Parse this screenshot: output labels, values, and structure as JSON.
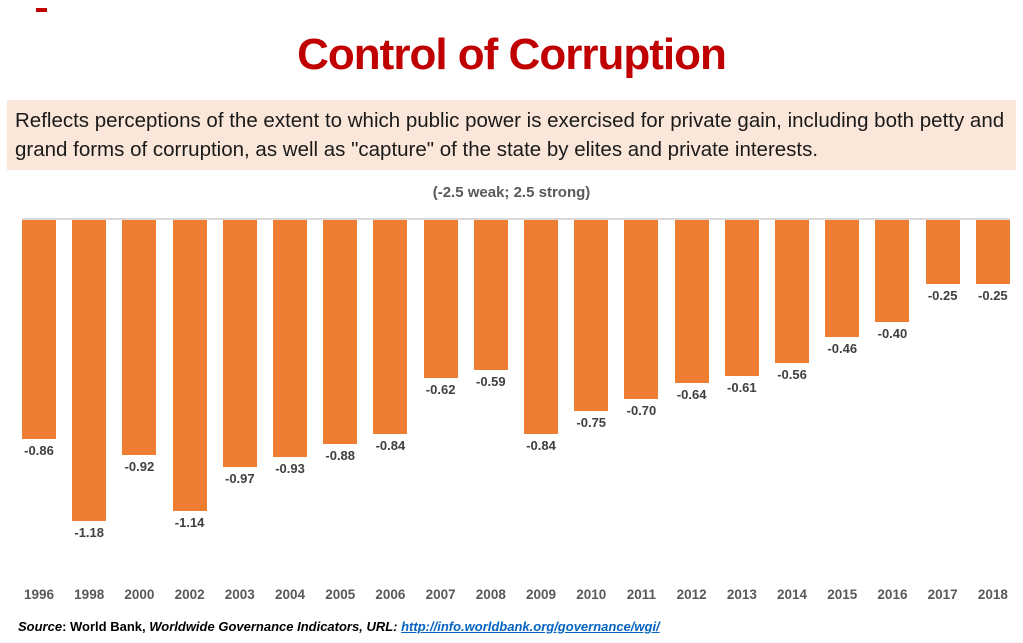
{
  "title": "Control of Corruption",
  "description": "Reflects perceptions of the extent to which public power is exercised for private gain, including both petty and grand forms of corruption, as well as \"capture\" of the state by elites and private interests.",
  "scale_note": "(-2.5 weak; 2.5 strong)",
  "source": {
    "prefix": "Source",
    "org": ": World Bank, ",
    "publication": "Worldwide Governance Indicators, ",
    "url_label": "URL: ",
    "url": "http://info.worldbank.org/governance/wgi/"
  },
  "colors": {
    "title": "#c00000",
    "bar": "#ed7d31",
    "value_label": "#404040",
    "year_label": "#595959",
    "description_bg": "#fbe7da",
    "link": "#0563c1"
  },
  "chart_data": {
    "type": "bar",
    "title": "Control of Corruption",
    "subtitle": "(-2.5 weak; 2.5 strong)",
    "xlabel": "",
    "ylabel": "",
    "ylim": [
      -1.25,
      0
    ],
    "grid": false,
    "legend": "none",
    "zero_axis_line": true,
    "value_labels_shown": true,
    "categories": [
      "1996",
      "1998",
      "2000",
      "2002",
      "2003",
      "2004",
      "2005",
      "2006",
      "2007",
      "2008",
      "2009",
      "2010",
      "2011",
      "2012",
      "2013",
      "2014",
      "2015",
      "2016",
      "2017",
      "2018"
    ],
    "values": [
      -0.86,
      -1.18,
      -0.92,
      -1.14,
      -0.97,
      -0.93,
      -0.88,
      -0.84,
      -0.62,
      -0.59,
      -0.84,
      -0.75,
      -0.7,
      -0.64,
      -0.61,
      -0.56,
      -0.46,
      -0.4,
      -0.25,
      -0.25
    ]
  }
}
